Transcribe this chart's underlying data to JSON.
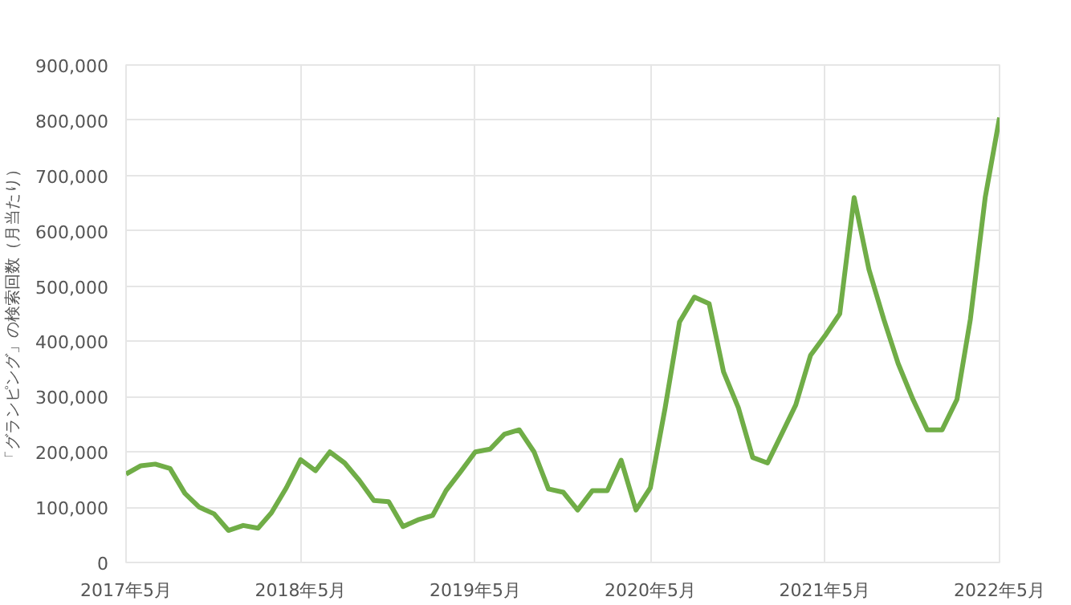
{
  "chart_data": {
    "type": "line",
    "ylabel": "「グランピング」の検索回数（月当たり）",
    "x": [
      "2017-05",
      "2017-06",
      "2017-07",
      "2017-08",
      "2017-09",
      "2017-10",
      "2017-11",
      "2017-12",
      "2018-01",
      "2018-02",
      "2018-03",
      "2018-04",
      "2018-05",
      "2018-06",
      "2018-07",
      "2018-08",
      "2018-09",
      "2018-10",
      "2018-11",
      "2018-12",
      "2019-01",
      "2019-02",
      "2019-03",
      "2019-04",
      "2019-05",
      "2019-06",
      "2019-07",
      "2019-08",
      "2019-09",
      "2019-10",
      "2019-11",
      "2019-12",
      "2020-01",
      "2020-02",
      "2020-03",
      "2020-04",
      "2020-05",
      "2020-06",
      "2020-07",
      "2020-08",
      "2020-09",
      "2020-10",
      "2020-11",
      "2020-12",
      "2021-01",
      "2021-02",
      "2021-03",
      "2021-04",
      "2021-05",
      "2021-06",
      "2021-07",
      "2021-08",
      "2021-09",
      "2021-10",
      "2021-11",
      "2021-12",
      "2022-01",
      "2022-02",
      "2022-03",
      "2022-04",
      "2022-05"
    ],
    "series": [
      {
        "color": "#70ad47",
        "values": [
          160000,
          175000,
          178000,
          170000,
          125000,
          100000,
          88000,
          58000,
          67000,
          62000,
          90000,
          135000,
          186000,
          166000,
          200000,
          180000,
          148000,
          112000,
          110000,
          65000,
          77000,
          85000,
          130000,
          165000,
          200000,
          205000,
          232000,
          240000,
          200000,
          133000,
          127000,
          95000,
          130000,
          130000,
          185000,
          95000,
          135000,
          280000,
          435000,
          480000,
          468000,
          345000,
          280000,
          190000,
          180000,
          235000,
          285000,
          375000,
          410000,
          450000,
          660000,
          530000,
          440000,
          360000,
          295000,
          240000,
          240000,
          295000,
          440000,
          660000,
          805000
        ]
      }
    ],
    "xlim": [
      "2017-05",
      "2022-05"
    ],
    "xticks": [
      {
        "value": "2017-05",
        "label": "2017年5月"
      },
      {
        "value": "2018-05",
        "label": "2018年5月"
      },
      {
        "value": "2019-05",
        "label": "2019年5月"
      },
      {
        "value": "2020-05",
        "label": "2020年5月"
      },
      {
        "value": "2021-05",
        "label": "2021年5月"
      },
      {
        "value": "2022-05",
        "label": "2022年5月"
      }
    ],
    "ylim": [
      0,
      900000
    ],
    "yticks": [
      {
        "value": 0,
        "label": "0"
      },
      {
        "value": 100000,
        "label": "100,000"
      },
      {
        "value": 200000,
        "label": "200,000"
      },
      {
        "value": 300000,
        "label": "300,000"
      },
      {
        "value": 400000,
        "label": "400,000"
      },
      {
        "value": 500000,
        "label": "500,000"
      },
      {
        "value": 600000,
        "label": "600,000"
      },
      {
        "value": 700000,
        "label": "700,000"
      },
      {
        "value": 800000,
        "label": "800,000"
      },
      {
        "value": 900000,
        "label": "900,000"
      }
    ],
    "grid": true,
    "marker": "none",
    "line_style": "solid"
  }
}
